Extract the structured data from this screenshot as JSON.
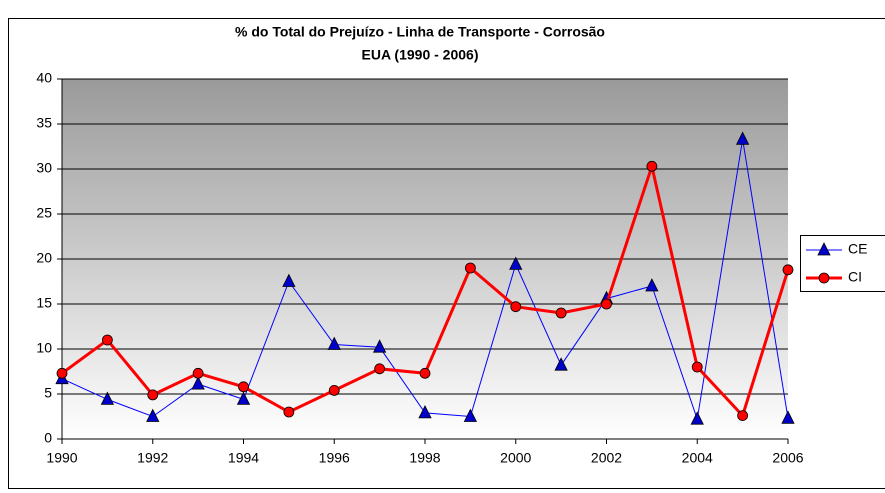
{
  "chart_data": {
    "type": "line",
    "title": [
      "% do Total do Prejuízo - Linha de Transporte - Corrosão",
      "EUA (1990 - 2006)"
    ],
    "x": [
      1990,
      1991,
      1992,
      1993,
      1994,
      1995,
      1996,
      1997,
      1998,
      1999,
      2000,
      2001,
      2002,
      2003,
      2004,
      2005,
      2006
    ],
    "series": [
      {
        "name": "CE",
        "color": "#0000ff",
        "marker": "triangle",
        "values": [
          6.7,
          4.4,
          2.5,
          6.1,
          4.4,
          17.5,
          10.5,
          10.2,
          2.9,
          2.5,
          19.4,
          8.2,
          15.6,
          17.0,
          2.2,
          33.3,
          2.3
        ]
      },
      {
        "name": "CI",
        "color": "#ff0000",
        "marker": "circle",
        "values": [
          7.3,
          11.0,
          4.9,
          7.3,
          5.8,
          3.0,
          5.4,
          7.8,
          7.3,
          19.0,
          14.7,
          14.0,
          15.0,
          30.3,
          8.0,
          2.6,
          18.8
        ]
      }
    ],
    "xlim": [
      1990,
      2006
    ],
    "xticks": [
      1990,
      1992,
      1994,
      1996,
      1998,
      2000,
      2002,
      2004,
      2006
    ],
    "ylim": [
      0,
      40
    ],
    "yticks": [
      0,
      5,
      10,
      15,
      20,
      25,
      30,
      35,
      40
    ],
    "grid": true,
    "legend": "right"
  }
}
